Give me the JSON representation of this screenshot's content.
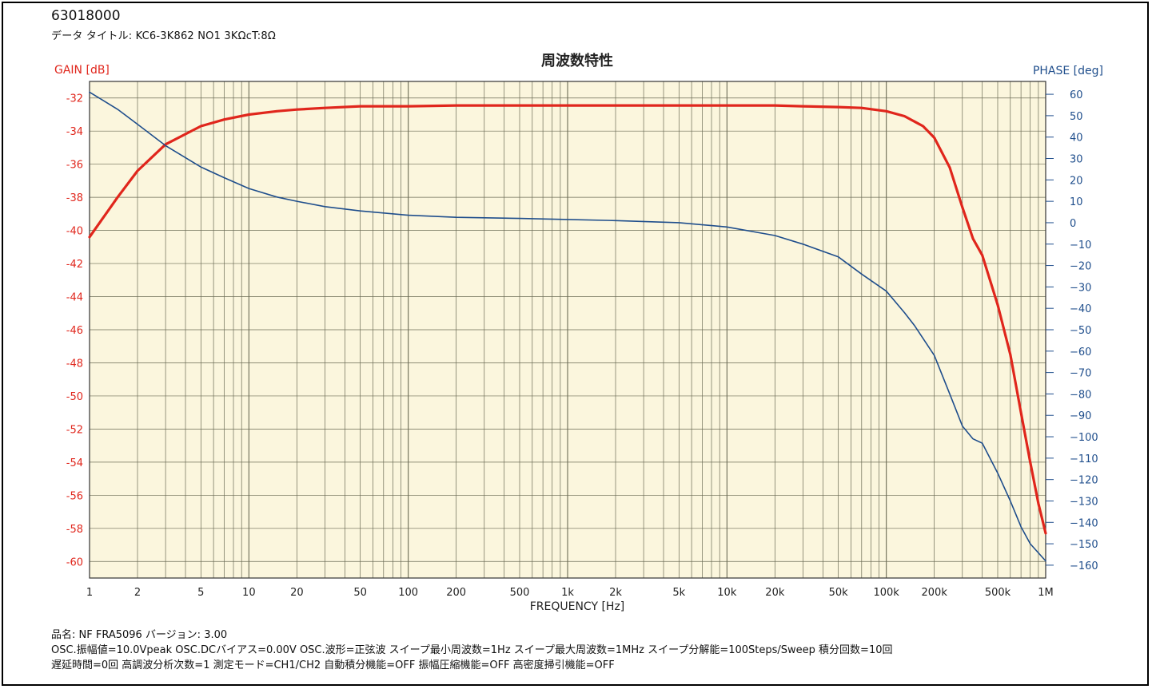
{
  "doc_id": "63018000",
  "data_title": "データ タイトル: KC6-3K862  NO1  3KΩcT:8Ω",
  "footer": {
    "line1": "品名: NF FRA5096      バージョン: 3.00",
    "line2": "OSC.振幅値=10.0Vpeak  OSC.DCバイアス=0.00V  OSC.波形=正弦波  スイープ最小周波数=1Hz  スイープ最大周波数=1MHz  スイープ分解能=100Steps/Sweep  積分回数=10回",
    "line3": "遅延時間=0回  高調波分析次数=1  測定モード=CH1/CH2  自動積分機能=OFF  振幅圧縮機能=OFF  高密度掃引機能=OFF"
  },
  "colors": {
    "gain": "#e0261c",
    "phase": "#1f4e8c",
    "grid": "#6b6b55",
    "paper": "#fbf6dd"
  },
  "chart_data": {
    "type": "line",
    "title": "周波数特性",
    "xlabel": "FREQUENCY [Hz]",
    "xscale": "log",
    "xlim": [
      1,
      1000000
    ],
    "x_tick_labels": [
      {
        "v": 1,
        "t": "1"
      },
      {
        "v": 2,
        "t": "2"
      },
      {
        "v": 5,
        "t": "5"
      },
      {
        "v": 10,
        "t": "10"
      },
      {
        "v": 20,
        "t": "20"
      },
      {
        "v": 50,
        "t": "50"
      },
      {
        "v": 100,
        "t": "100"
      },
      {
        "v": 200,
        "t": "200"
      },
      {
        "v": 500,
        "t": "500"
      },
      {
        "v": 1000,
        "t": "1k"
      },
      {
        "v": 2000,
        "t": "2k"
      },
      {
        "v": 5000,
        "t": "5k"
      },
      {
        "v": 10000,
        "t": "10k"
      },
      {
        "v": 20000,
        "t": "20k"
      },
      {
        "v": 50000,
        "t": "50k"
      },
      {
        "v": 100000,
        "t": "100k"
      },
      {
        "v": 200000,
        "t": "200k"
      },
      {
        "v": 500000,
        "t": "500k"
      },
      {
        "v": 1000000,
        "t": "1M"
      }
    ],
    "y_left": {
      "label": "GAIN [dB]",
      "ylim": [
        -61,
        -31
      ],
      "ticks": [
        -32,
        -34,
        -36,
        -38,
        -40,
        -42,
        -44,
        -46,
        -48,
        -50,
        -52,
        -54,
        -56,
        -58,
        -60
      ]
    },
    "y_right": {
      "label": "PHASE [deg]",
      "ylim": [
        -166,
        66
      ],
      "ticks": [
        60,
        50,
        40,
        30,
        20,
        10,
        0,
        -10,
        -20,
        -30,
        -40,
        -50,
        -60,
        -70,
        -80,
        -90,
        -100,
        -110,
        -120,
        -130,
        -140,
        -150,
        -160
      ]
    },
    "grid": true,
    "series": [
      {
        "name": "GAIN [dB]",
        "axis": "left",
        "x": [
          1,
          1.5,
          2,
          3,
          5,
          7,
          10,
          15,
          20,
          30,
          50,
          100,
          200,
          500,
          1000,
          2000,
          5000,
          10000,
          20000,
          30000,
          50000,
          70000,
          100000,
          130000,
          170000,
          200000,
          250000,
          300000,
          350000,
          400000,
          500000,
          600000,
          700000,
          800000,
          900000,
          1000000
        ],
        "y": [
          -40.4,
          -38.0,
          -36.4,
          -34.8,
          -33.7,
          -33.3,
          -33.0,
          -32.8,
          -32.7,
          -32.6,
          -32.5,
          -32.5,
          -32.45,
          -32.45,
          -32.45,
          -32.45,
          -32.45,
          -32.45,
          -32.45,
          -32.5,
          -32.55,
          -32.6,
          -32.8,
          -33.1,
          -33.7,
          -34.4,
          -36.2,
          -38.6,
          -40.5,
          -41.5,
          -44.5,
          -47.5,
          -51.0,
          -54.0,
          -56.5,
          -58.3
        ]
      },
      {
        "name": "PHASE [deg]",
        "axis": "right",
        "x": [
          1,
          1.5,
          2,
          3,
          5,
          7,
          10,
          15,
          20,
          30,
          50,
          100,
          200,
          500,
          1000,
          2000,
          5000,
          10000,
          20000,
          30000,
          50000,
          70000,
          100000,
          130000,
          150000,
          200000,
          250000,
          300000,
          350000,
          400000,
          500000,
          600000,
          700000,
          800000,
          1000000
        ],
        "y": [
          61,
          53,
          46,
          36,
          26,
          21,
          16,
          12,
          10,
          7.5,
          5.5,
          3.5,
          2.5,
          2,
          1.5,
          1,
          0,
          -2,
          -6,
          -10,
          -16,
          -24,
          -32,
          -42,
          -48,
          -62,
          -80,
          -95,
          -101,
          -103,
          -117,
          -130,
          -142,
          -150,
          -158
        ]
      }
    ]
  }
}
